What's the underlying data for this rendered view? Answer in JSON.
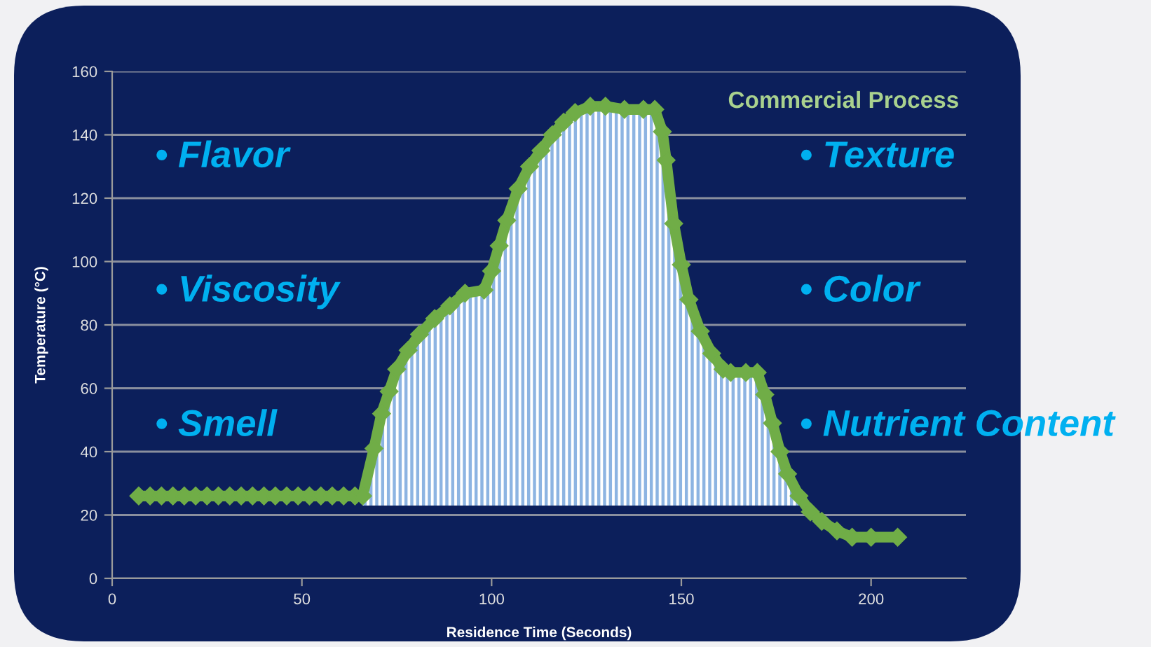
{
  "chart_data": {
    "type": "line",
    "title": "Commercial Process",
    "xlabel": "Residence Time (Seconds)",
    "ylabel": "Temperature (°C)",
    "annotations": [
      "• Flavor",
      "• Viscosity",
      "• Smell",
      "• Texture",
      "• Color",
      "• Nutrient Content"
    ],
    "xlim": [
      0,
      225
    ],
    "ylim": [
      0,
      160
    ],
    "xticks": [
      0,
      50,
      100,
      150,
      200
    ],
    "yticks": [
      0,
      20,
      40,
      60,
      80,
      100,
      120,
      140,
      160
    ],
    "grid": "y",
    "marker": "diamond",
    "line_style": "solid",
    "series": [
      {
        "color": "#70ad47",
        "x": [
          7,
          10,
          13,
          16,
          19,
          22,
          25,
          28,
          31,
          34,
          37,
          40,
          43,
          46,
          49,
          52,
          55,
          58,
          61,
          64,
          66,
          69,
          71,
          73,
          75,
          78,
          81,
          85,
          89,
          93,
          98,
          100,
          102,
          104,
          107,
          110,
          113,
          116,
          119,
          122,
          126,
          130,
          135,
          140,
          143,
          145,
          146,
          148,
          150,
          152,
          155,
          158,
          161,
          163,
          167,
          170,
          172,
          174,
          176,
          178,
          181,
          184,
          187,
          191,
          195,
          200,
          207
        ],
        "values": [
          26,
          26,
          26,
          26,
          26,
          26,
          26,
          26,
          26,
          26,
          26,
          26,
          26,
          26,
          26,
          26,
          26,
          26,
          26,
          26,
          26,
          41,
          52,
          59,
          66,
          72,
          77,
          82,
          86,
          90,
          91,
          97,
          105,
          113,
          123,
          130,
          135,
          140,
          144,
          147,
          149,
          149,
          148,
          148,
          148,
          141,
          132,
          112,
          99,
          88,
          78,
          71,
          66,
          65,
          65,
          65,
          58,
          49,
          40,
          33,
          26,
          21,
          18,
          15,
          13,
          13,
          13
        ],
        "lower": [
          null,
          null,
          null,
          null,
          null,
          null,
          null,
          null,
          null,
          null,
          null,
          null,
          null,
          null,
          null,
          null,
          null,
          null,
          null,
          null,
          23,
          23,
          23,
          23,
          23,
          23,
          23,
          23,
          23,
          23,
          23,
          23,
          23,
          23,
          23,
          23,
          23,
          23,
          23,
          23,
          23,
          23,
          23,
          23,
          23,
          23,
          23,
          23,
          23,
          23,
          23,
          23,
          23,
          23,
          23,
          23,
          23,
          23,
          23,
          23,
          23,
          null,
          null,
          null,
          null,
          null,
          null
        ],
        "upper": [
          null,
          null,
          null,
          null,
          null,
          null,
          null,
          null,
          null,
          null,
          null,
          null,
          null,
          null,
          null,
          null,
          null,
          null,
          null,
          null,
          26,
          41,
          52,
          59,
          66,
          72,
          77,
          82,
          86,
          90,
          91,
          97,
          105,
          113,
          123,
          130,
          135,
          140,
          144,
          147,
          149,
          149,
          148,
          148,
          148,
          141,
          132,
          112,
          99,
          88,
          78,
          71,
          66,
          65,
          65,
          65,
          58,
          49,
          40,
          33,
          26,
          null,
          null,
          null,
          null,
          null,
          null
        ]
      }
    ]
  }
}
